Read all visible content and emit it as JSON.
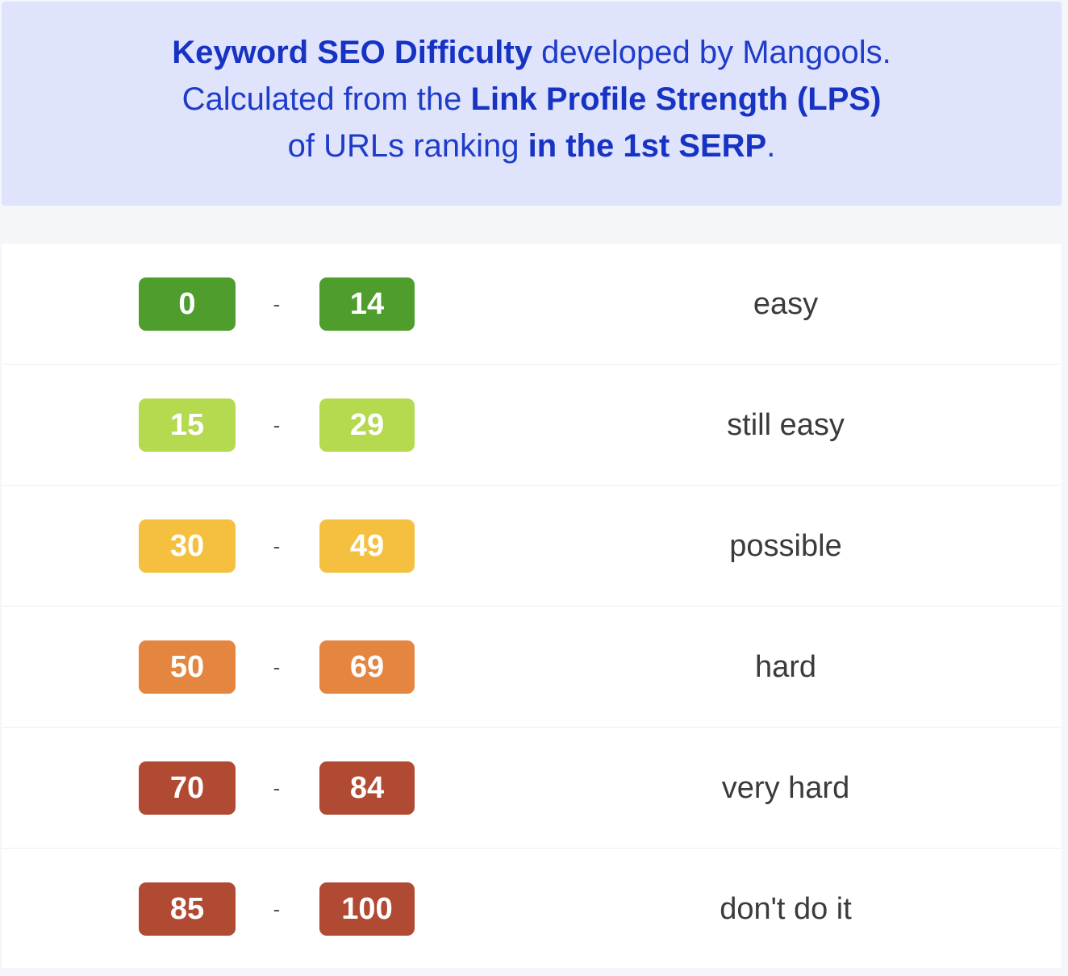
{
  "header": {
    "line1_bold": "Keyword SEO Difficulty",
    "line1_rest": " developed by Mangools.",
    "line2_pre": "Calculated from the ",
    "line2_bold": "Link Profile Strength (LPS)",
    "line3_pre": "of URLs ranking ",
    "line3_bold": "in the 1st SERP",
    "line3_post": "."
  },
  "rows": [
    {
      "min": "0",
      "separator": "-",
      "max": "14",
      "label": "easy",
      "color": "#4f9d2d"
    },
    {
      "min": "15",
      "separator": "-",
      "max": "29",
      "label": "still easy",
      "color": "#b5d94f"
    },
    {
      "min": "30",
      "separator": "-",
      "max": "49",
      "label": "possible",
      "color": "#f5c040"
    },
    {
      "min": "50",
      "separator": "-",
      "max": "69",
      "label": "hard",
      "color": "#e48540"
    },
    {
      "min": "70",
      "separator": "-",
      "max": "84",
      "label": "very hard",
      "color": "#b04a33"
    },
    {
      "min": "85",
      "separator": "-",
      "max": "100",
      "label": "don't do it",
      "color": "#b04a33"
    }
  ]
}
